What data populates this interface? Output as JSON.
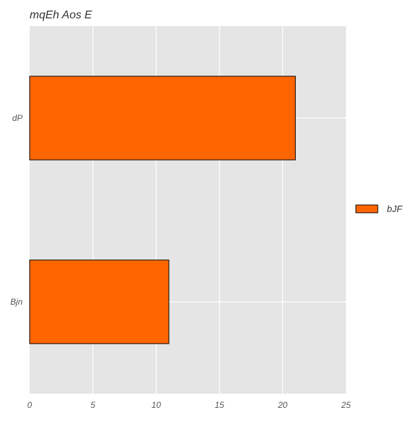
{
  "chart_data": {
    "type": "bar",
    "orientation": "horizontal",
    "title": "mqEh Aos E",
    "xlabel": "",
    "ylabel": "",
    "categories": [
      "dP",
      "Bjn"
    ],
    "series": [
      {
        "name": "bJF",
        "values": [
          21,
          11
        ],
        "color": "#ff6600"
      }
    ],
    "xlim": [
      0,
      25
    ],
    "xticks": [
      "0",
      "5",
      "10",
      "15",
      "20",
      "25"
    ],
    "grid": true,
    "legend_position": "right"
  }
}
